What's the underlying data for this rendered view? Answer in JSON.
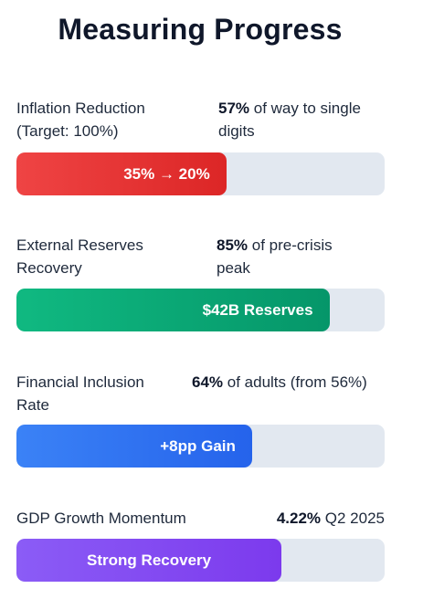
{
  "title": "Measuring Progress",
  "metrics": [
    {
      "label": "Inflation Reduction (Target: 100%)",
      "stat_value": "57%",
      "stat_text": " of way to single digits",
      "bar_text": "35% → 20%",
      "progress_percent": 57,
      "color": "#ef4444"
    },
    {
      "label": "External Reserves Recovery",
      "stat_value": "85%",
      "stat_text": " of pre-crisis peak",
      "bar_text": "$42B Reserves",
      "progress_percent": 85,
      "color": "#10b981"
    },
    {
      "label": "Financial Inclusion Rate",
      "stat_value": "64%",
      "stat_text": " of adults (from 56%)",
      "bar_text": "+8pp Gain",
      "progress_percent": 64,
      "color": "#3b82f6"
    },
    {
      "label": "GDP Growth Momentum",
      "stat_value": "4.22%",
      "stat_text": " Q2 2025",
      "bar_text": "Strong Recovery",
      "progress_percent": 72,
      "color": "#8b5cf6"
    }
  ]
}
